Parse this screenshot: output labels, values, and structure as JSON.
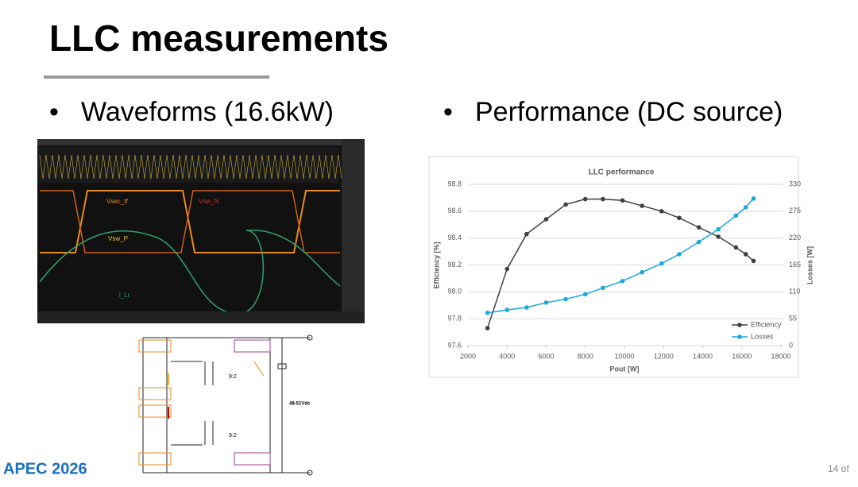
{
  "slide": {
    "title": "LLC measurements",
    "bullets": [
      "Waveforms (16.6kW)",
      "Performance (DC source)"
    ],
    "waveforms": {
      "labels": [
        "Vsec_tf",
        "Vsw_N",
        "Vsw_P",
        "i_Lr"
      ]
    },
    "circuit": {
      "ratios": [
        "9:2",
        "9:2"
      ],
      "output": "48-51Vdc"
    },
    "footer": {
      "logo": "APEC 2026",
      "page": "14 of"
    }
  },
  "chart_data": {
    "type": "line",
    "title": "LLC performance",
    "x_label": "Pout [W]",
    "y_label": "Efficiency [%]",
    "y2_label": "Losses [W]",
    "x": [
      3000,
      4000,
      5000,
      6000,
      7000,
      8000,
      8900,
      9900,
      10900,
      11900,
      12800,
      13800,
      14800,
      15700,
      16200,
      16600
    ],
    "series": [
      {
        "name": "Efficiency",
        "color": "#404040",
        "values": [
          97.73,
          98.17,
          98.43,
          98.54,
          98.65,
          98.69,
          98.69,
          98.68,
          98.64,
          98.6,
          98.55,
          98.48,
          98.41,
          98.33,
          98.28,
          98.23
        ]
      },
      {
        "name": "Losses",
        "color": "#1aa8e0",
        "axis": "y2",
        "values": [
          67,
          73,
          78,
          88,
          95,
          105,
          118,
          132,
          150,
          168,
          187,
          212,
          238,
          266,
          283,
          301
        ]
      }
    ],
    "xlim": [
      2000,
      18000
    ],
    "xticks": [
      2000,
      4000,
      6000,
      8000,
      10000,
      12000,
      14000,
      16000,
      18000
    ],
    "ylim": [
      97.6,
      98.8
    ],
    "yticks": [
      97.6,
      {
        "value": 97.8,
        "label": "97.8"
      },
      {
        "value": 98,
        "label": "98.0"
      },
      98.2,
      98.4,
      98.6,
      98.8
    ],
    "y2lim": [
      0,
      330
    ],
    "y2ticks": [
      0,
      55,
      110,
      165,
      220,
      275,
      330
    ],
    "grid": true,
    "legend": "lower right"
  }
}
